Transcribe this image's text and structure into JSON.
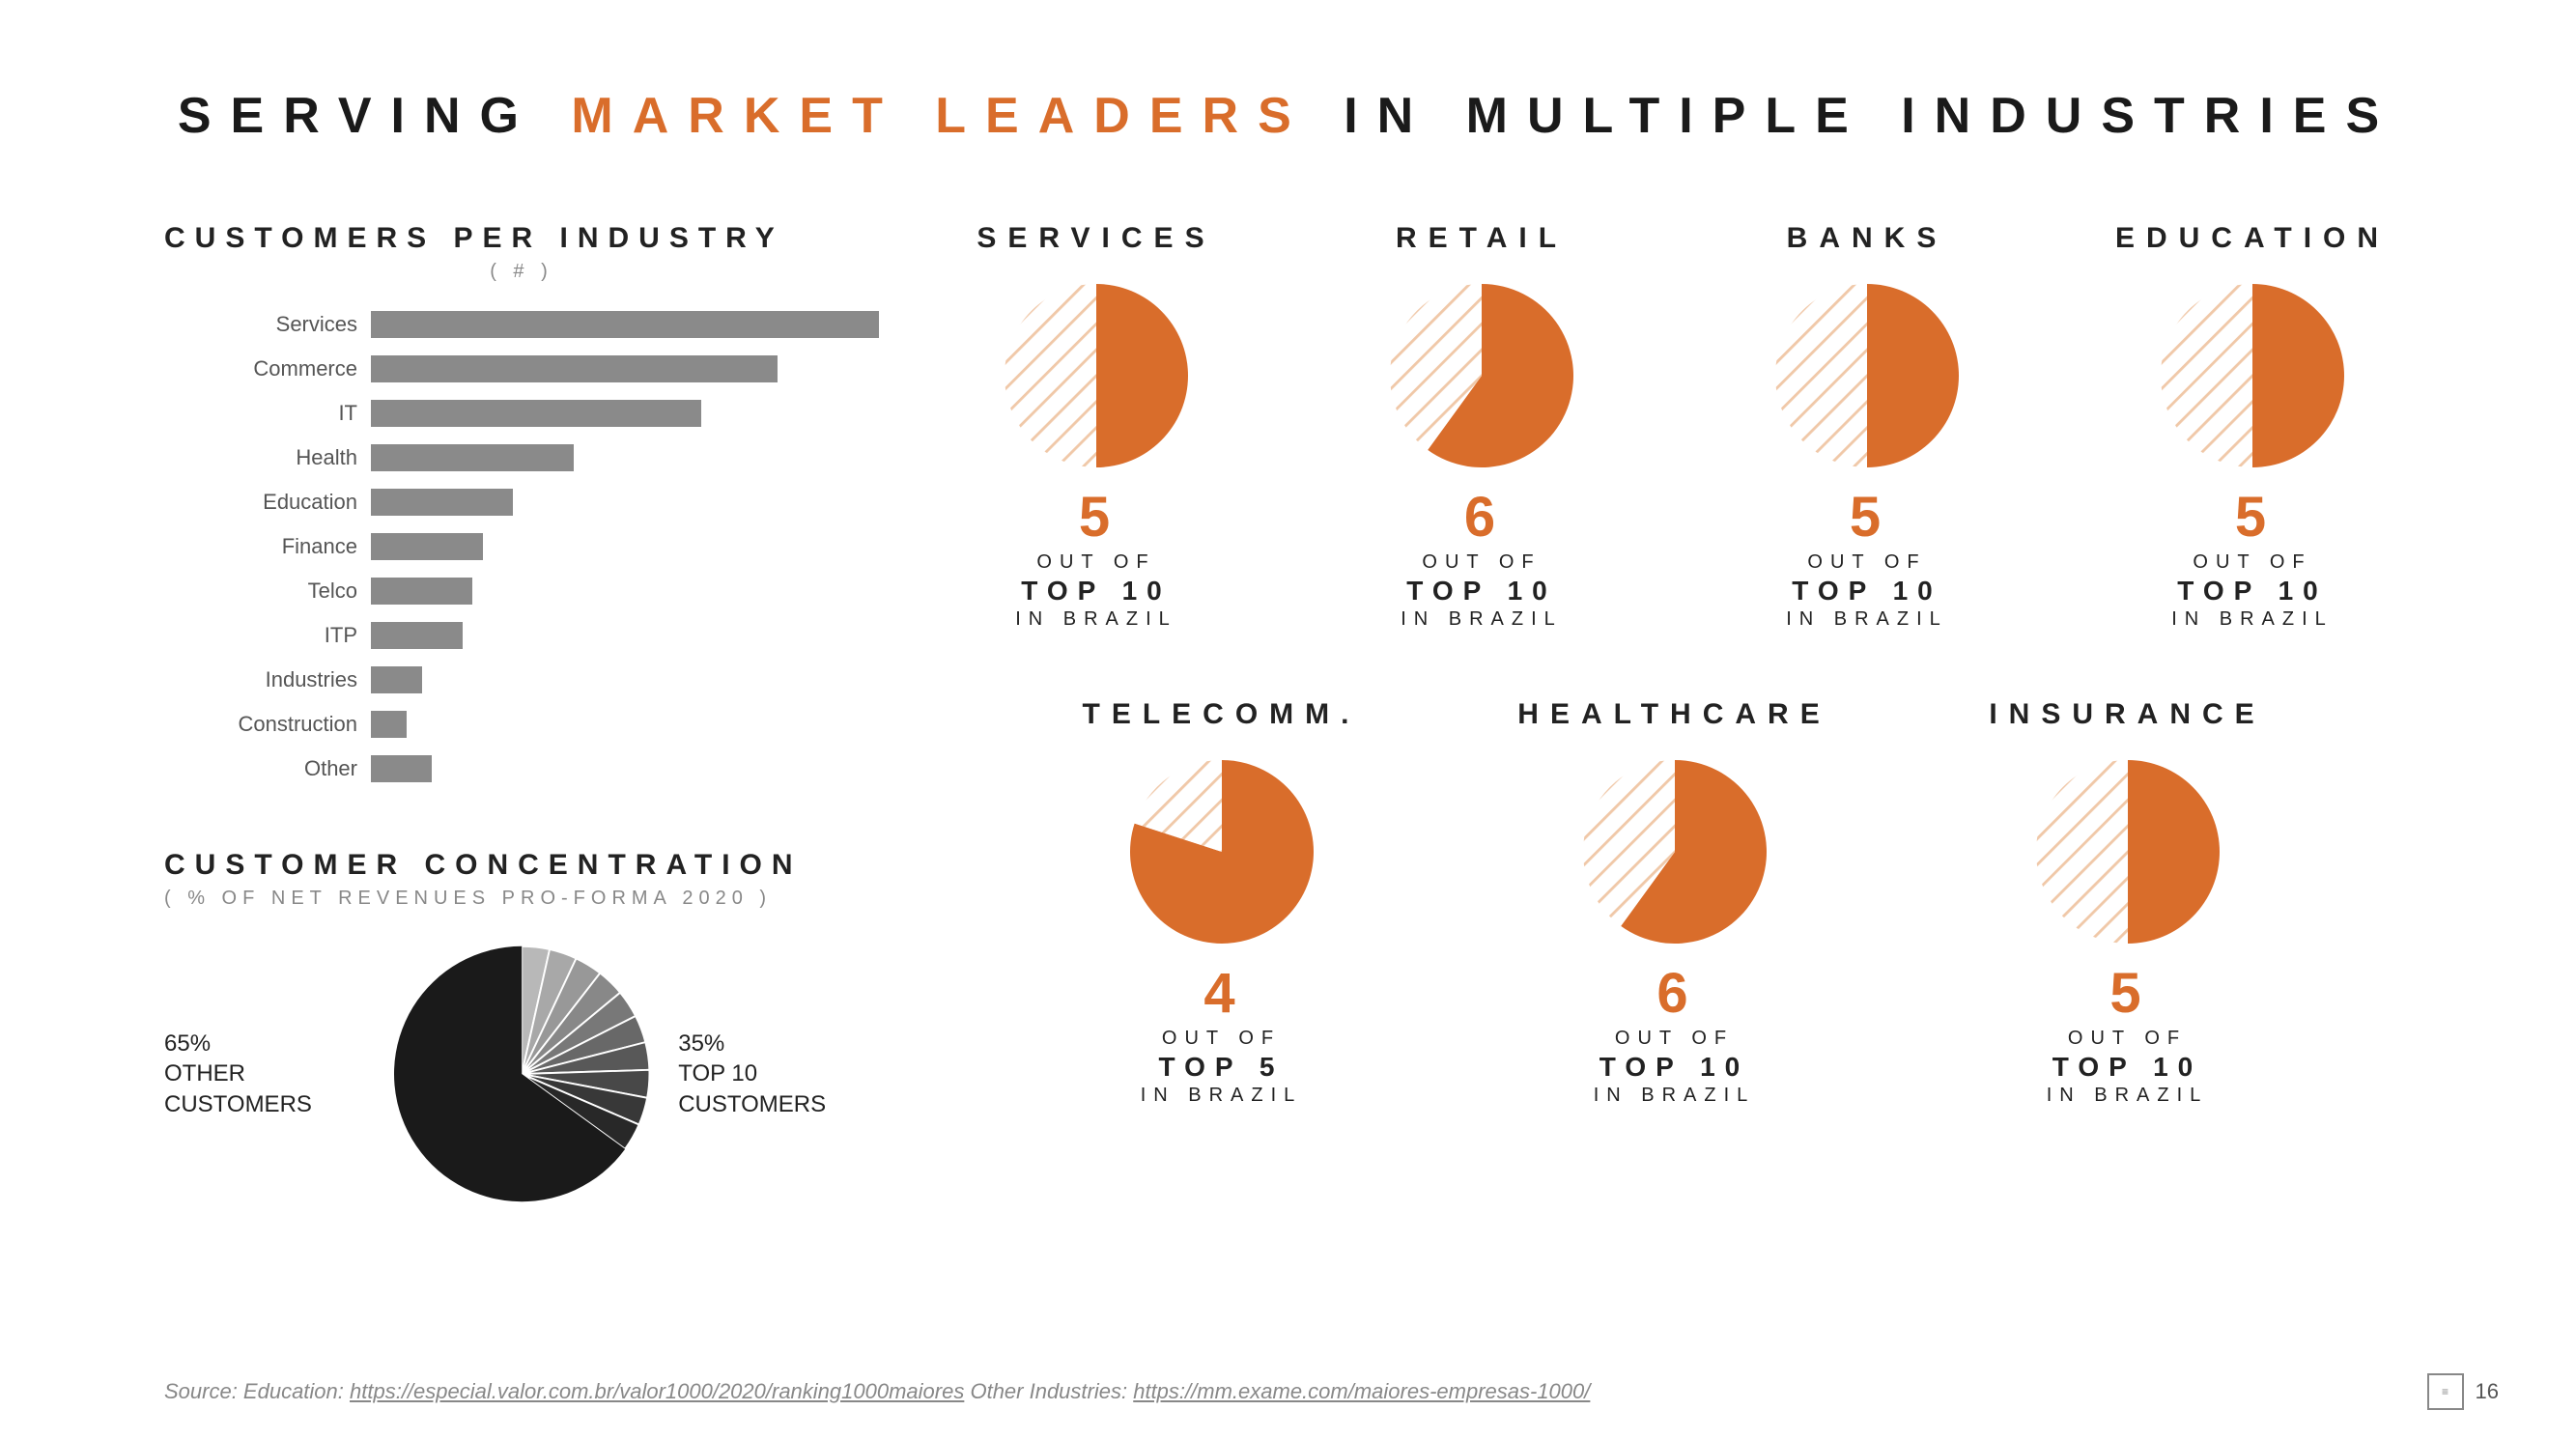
{
  "title": {
    "part1": "SERVING",
    "part2": "MARKET LEADERS",
    "part3": "IN MULTIPLE INDUSTRIES"
  },
  "colors": {
    "accent": "#d96d2b",
    "hatch": "#f0c8a8",
    "bar": "#8a8a8a",
    "text": "#222222",
    "muted": "#888888",
    "conc_main": "#1a1a1a",
    "conc_light": "#cfcfcf",
    "conc_slices": [
      "#b8b8b8",
      "#a8a8a8",
      "#989898",
      "#888888",
      "#787878",
      "#686868",
      "#585858",
      "#484848",
      "#383838",
      "#282828"
    ],
    "background": "#ffffff"
  },
  "bar_chart": {
    "title": "CUSTOMERS PER INDUSTRY",
    "subtitle": "( # )",
    "max": 100,
    "rows": [
      {
        "label": "Services",
        "value": 100
      },
      {
        "label": "Commerce",
        "value": 80
      },
      {
        "label": "IT",
        "value": 65
      },
      {
        "label": "Health",
        "value": 40
      },
      {
        "label": "Education",
        "value": 28
      },
      {
        "label": "Finance",
        "value": 22
      },
      {
        "label": "Telco",
        "value": 20
      },
      {
        "label": "ITP",
        "value": 18
      },
      {
        "label": "Industries",
        "value": 10
      },
      {
        "label": "Construction",
        "value": 7
      },
      {
        "label": "Other",
        "value": 12
      }
    ]
  },
  "concentration": {
    "title": "CUSTOMER CONCENTRATION",
    "subtitle": "( % OF NET REVENUES PRO-FORMA 2020 )",
    "left_pct": "65%",
    "left_label": "OTHER CUSTOMERS",
    "right_pct": "35%",
    "right_label": "TOP 10 CUSTOMERS",
    "other_share": 65,
    "top10_share": 35,
    "top10_slice_each": 3.5,
    "pie_size": 280
  },
  "pies_row1": [
    {
      "title": "SERVICES",
      "num": "5",
      "top": "TOP 10",
      "frac": 0.5
    },
    {
      "title": "RETAIL",
      "num": "6",
      "top": "TOP 10",
      "frac": 0.6
    },
    {
      "title": "BANKS",
      "num": "5",
      "top": "TOP 10",
      "frac": 0.5
    },
    {
      "title": "EDUCATION",
      "num": "5",
      "top": "TOP 10",
      "frac": 0.5
    }
  ],
  "pies_row2": [
    {
      "title": "TELECOMM.",
      "num": "4",
      "top": "TOP 5",
      "frac": 0.8
    },
    {
      "title": "HEALTHCARE",
      "num": "6",
      "top": "TOP 10",
      "frac": 0.6
    },
    {
      "title": "INSURANCE",
      "num": "5",
      "top": "TOP 10",
      "frac": 0.5
    }
  ],
  "pie_labels": {
    "out_of": "OUT OF",
    "in_brazil": "IN BRAZIL"
  },
  "footer": {
    "prefix": "Source: Education: ",
    "link1": "https://especial.valor.com.br/valor1000/2020/ranking1000maiores",
    "mid": " Other Industries: ",
    "link2": "https://mm.exame.com/maiores-empresas-1000/",
    "page": "16"
  }
}
